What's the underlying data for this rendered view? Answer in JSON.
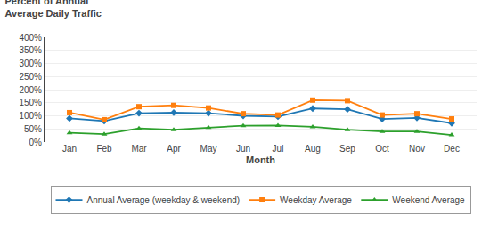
{
  "chart_data": {
    "type": "line",
    "ylabel": [
      "Percent of Annual",
      "Average Daily Traffic"
    ],
    "xlabel": "Month",
    "categories": [
      "Jan",
      "Feb",
      "Mar",
      "Apr",
      "May",
      "Jun",
      "Jul",
      "Aug",
      "Sep",
      "Oct",
      "Nov",
      "Dec"
    ],
    "series": [
      {
        "name": "Annual Average (weekday & weekend)",
        "marker": "diamond",
        "line_style": "solid",
        "values": [
          90,
          80,
          110,
          112,
          110,
          100,
          97,
          128,
          125,
          88,
          92,
          72
        ]
      },
      {
        "name": "Weekday Average",
        "marker": "square",
        "line_style": "solid",
        "values": [
          112,
          85,
          135,
          140,
          130,
          108,
          103,
          160,
          158,
          103,
          108,
          88
        ]
      },
      {
        "name": "Weekend Average",
        "marker": "triangle-up",
        "line_style": "solid",
        "values": [
          35,
          30,
          52,
          47,
          55,
          62,
          63,
          58,
          47,
          40,
          40,
          27
        ]
      }
    ],
    "ylim": [
      0,
      400
    ],
    "yticks": [
      {
        "value": 0,
        "label": "0%"
      },
      {
        "value": 50,
        "label": "50%"
      },
      {
        "value": 100,
        "label": "100%"
      },
      {
        "value": 150,
        "label": "150%"
      },
      {
        "value": 200,
        "label": "200%"
      },
      {
        "value": 250,
        "label": "250%"
      },
      {
        "value": 300,
        "label": "300%"
      },
      {
        "value": 350,
        "label": "350%"
      },
      {
        "value": 400,
        "label": "400%"
      }
    ],
    "grid": true,
    "legend": "bottom"
  }
}
